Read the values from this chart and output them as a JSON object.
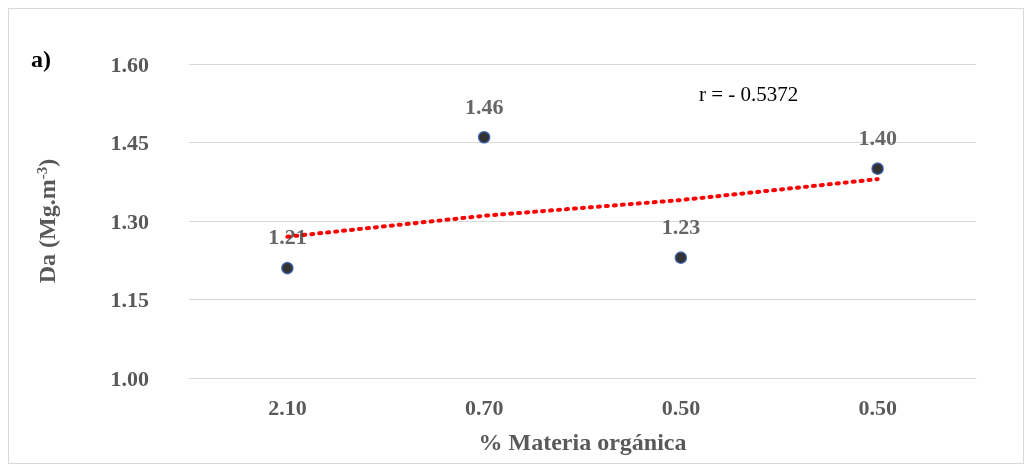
{
  "chart_data": {
    "type": "scatter",
    "xlabel": "% Materia orgánica",
    "ylabel": "Da (Mg.m$^{-3}$)",
    "categories": [
      "2.10",
      "0.70",
      "0.50",
      "0.50"
    ],
    "series": [
      {
        "color": "#000000",
        "values": [
          1.21,
          1.46,
          1.23,
          1.4
        ],
        "value_labels": [
          "1.21",
          "1.46",
          "1.23",
          "1.40"
        ],
        "marker": "circle"
      },
      {
        "type": "line",
        "color": "#ff0000",
        "values": [
          1.27,
          1.31,
          1.34,
          1.38
        ],
        "line_style": "dotted",
        "marker": "none"
      }
    ],
    "ylim": [
      1.0,
      1.6
    ],
    "yticks": [
      {
        "value": 1.0,
        "label": "1.00"
      },
      {
        "value": 1.15,
        "label": "1.15"
      },
      {
        "value": 1.3,
        "label": "1.30"
      },
      {
        "value": 1.45,
        "label": "1.45"
      },
      {
        "value": 1.6,
        "label": "1.60"
      }
    ],
    "grid": "y",
    "annotations": [
      "a)",
      "r = - 0.5372"
    ]
  }
}
